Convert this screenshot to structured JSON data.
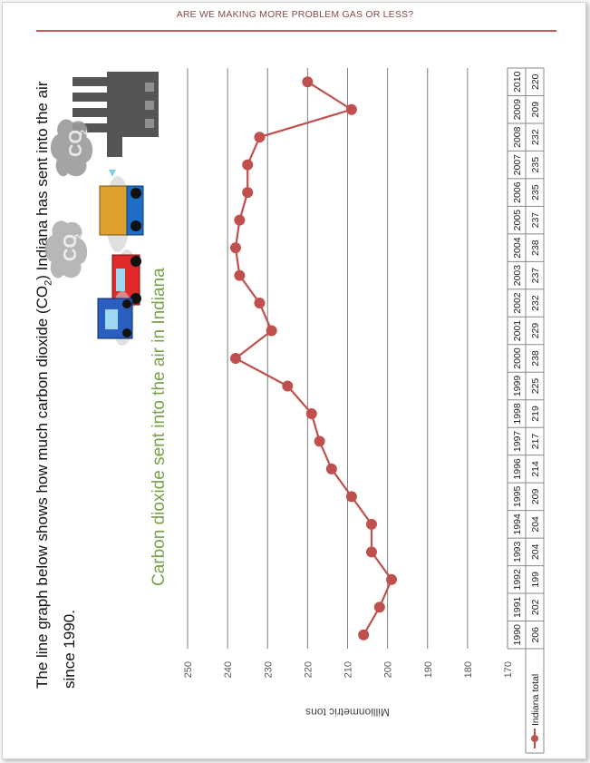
{
  "header": {
    "title": "ARE WE MAKING MORE PROBLEM GAS OR LESS?"
  },
  "intro": {
    "part1": "The line graph below shows how much carbon dioxide (CO",
    "sub": "2",
    "part2": ") Indiana has sent into the air since 1990."
  },
  "subtitle": "Carbon dioxide sent into the air in Indiana",
  "illustration": {
    "co2_label": "CO",
    "co2_sub": "2",
    "icons": [
      "factory-icon",
      "cloud-icon",
      "car-icon",
      "truck-icon"
    ]
  },
  "colors": {
    "series": "#c0504d",
    "subtitle": "#7aa04a",
    "header_rule": "#c05a5a",
    "car_blue": "#2a5fc0",
    "car_red": "#e02a2a",
    "truck_orange": "#e0a030"
  },
  "chart_data": {
    "type": "line",
    "title": "Carbon dioxide sent into the air in Indiana",
    "ylabel": "Millionmetric tons",
    "xlabel": "",
    "ylim": [
      170,
      250
    ],
    "yticks": [
      170,
      180,
      190,
      200,
      210,
      220,
      230,
      240,
      250
    ],
    "grid": true,
    "legend": "data-table",
    "categories": [
      "1990",
      "1991",
      "1992",
      "1993",
      "1994",
      "1995",
      "1996",
      "1997",
      "1998",
      "1999",
      "2000",
      "2001",
      "2002",
      "2003",
      "2004",
      "2005",
      "2006",
      "2007",
      "2008",
      "2009",
      "2010"
    ],
    "series": [
      {
        "name": "Indiana total",
        "values": [
          206,
          202,
          199,
          204,
          204,
          209,
          214,
          217,
          219,
          225,
          238,
          229,
          232,
          237,
          238,
          237,
          235,
          235,
          232,
          209,
          220
        ]
      }
    ]
  }
}
